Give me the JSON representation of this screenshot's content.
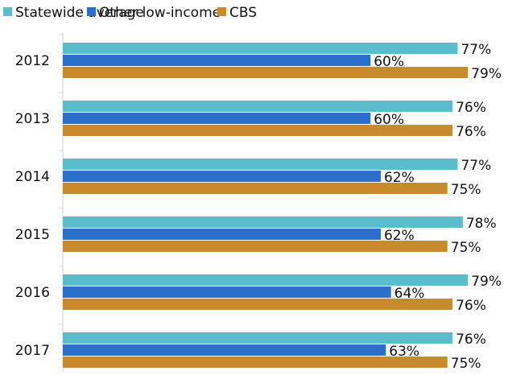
{
  "chart_data": {
    "type": "bar",
    "orientation": "horizontal",
    "categories": [
      "2012",
      "2013",
      "2014",
      "2015",
      "2016",
      "2017"
    ],
    "series": [
      {
        "name": "Statewide average",
        "color": "#5bbccc",
        "values": [
          77,
          76,
          77,
          78,
          79,
          76
        ],
        "value_labels": [
          "77%",
          "76%",
          "77%",
          "78%",
          "79%",
          "76%"
        ]
      },
      {
        "name": "Other low-income",
        "color": "#2a6fc9",
        "values": [
          60,
          60,
          62,
          62,
          64,
          63
        ],
        "value_labels": [
          "60%",
          "60%",
          "62%",
          "62%",
          "64%",
          "63%"
        ]
      },
      {
        "name": "CBS",
        "color": "#c98a2e",
        "values": [
          79,
          76,
          75,
          75,
          76,
          75
        ],
        "value_labels": [
          "79%",
          "76%",
          "75%",
          "75%",
          "76%",
          "75%"
        ]
      }
    ],
    "xlim": [
      0,
      100
    ],
    "legend": "top"
  }
}
